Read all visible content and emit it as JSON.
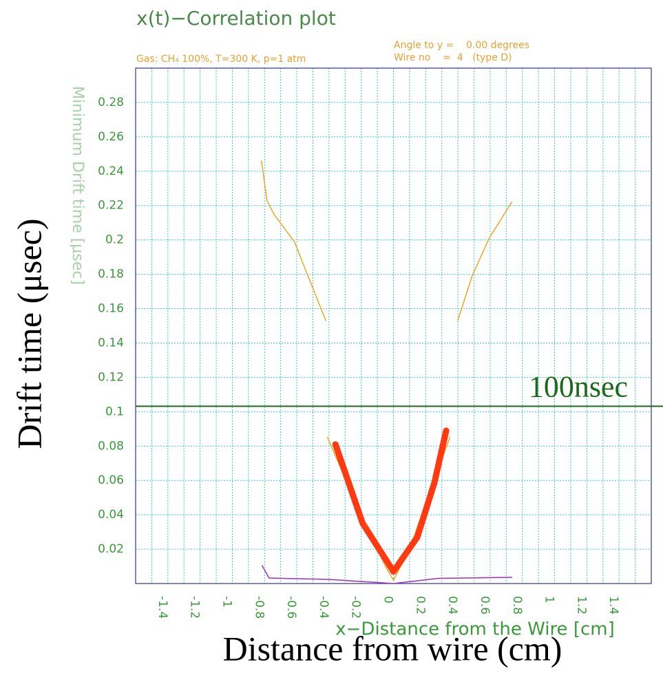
{
  "chart_data": {
    "type": "line",
    "title": "x(t)−Correlation plot",
    "subtitle": "Gas: CH₄ 100%, T=300 K, p=1 atm",
    "annotations": [
      "Angle to y =    0.00 degrees",
      "Wire no    =  4   (type D)"
    ],
    "x_label": "x−Distance from the Wire [cm]",
    "y_label": "Minimum Drift time [μsec]",
    "overlay_x_label": "Distance from wire (cm)",
    "overlay_y_label": "Drift time (μsec)",
    "reference_line": {
      "value": 0.1032,
      "label": "100nsec",
      "color": "#1a6a1a"
    },
    "xlim": [
      -1.6,
      1.6
    ],
    "ylim": [
      0,
      0.3
    ],
    "xticks": [
      -1.4,
      -1.2,
      -1,
      -0.8,
      -0.6,
      -0.4,
      -0.2,
      0,
      0.2,
      0.4,
      0.6,
      0.8,
      1,
      1.2,
      1.4
    ],
    "yticks": [
      0.02,
      0.04,
      0.06,
      0.08,
      0.1,
      0.12,
      0.14,
      0.16,
      0.18,
      0.2,
      0.22,
      0.24,
      0.26,
      0.28
    ],
    "grid": true,
    "series": [
      {
        "color": "#e8a820",
        "width": 1.5,
        "x": [
          -0.819,
          -0.785,
          -0.742,
          -0.615,
          -0.42
        ],
        "values": [
          0.246,
          0.223,
          0.215,
          0.199,
          0.153
        ]
      },
      {
        "color": "#e8a820",
        "width": 1.5,
        "x": [
          0.399,
          0.488,
          0.594,
          0.734
        ],
        "values": [
          0.153,
          0.179,
          0.201,
          0.222
        ]
      },
      {
        "color": "#e8a820",
        "width": 1.5,
        "x": [
          -0.41,
          -0.2,
          -0.05,
          0,
          0.1,
          0.25,
          0.35
        ],
        "values": [
          0.085,
          0.04,
          0.01,
          0.002,
          0.02,
          0.06,
          0.085
        ]
      },
      {
        "color": "#9a30c0",
        "width": 1.5,
        "x": [
          -0.815,
          -0.772,
          -0.403,
          -0.064,
          0,
          0.276,
          0.734
        ],
        "values": [
          0.0104,
          0.0032,
          0.0024,
          0.0004,
          0,
          0.003,
          0.0036
        ]
      },
      {
        "color": "#ff3a10",
        "width": 9,
        "x": [
          -0.36,
          -0.191,
          0,
          0.148,
          0.255,
          0.327
        ],
        "values": [
          0.081,
          0.035,
          0.007,
          0.027,
          0.059,
          0.089
        ]
      }
    ]
  }
}
